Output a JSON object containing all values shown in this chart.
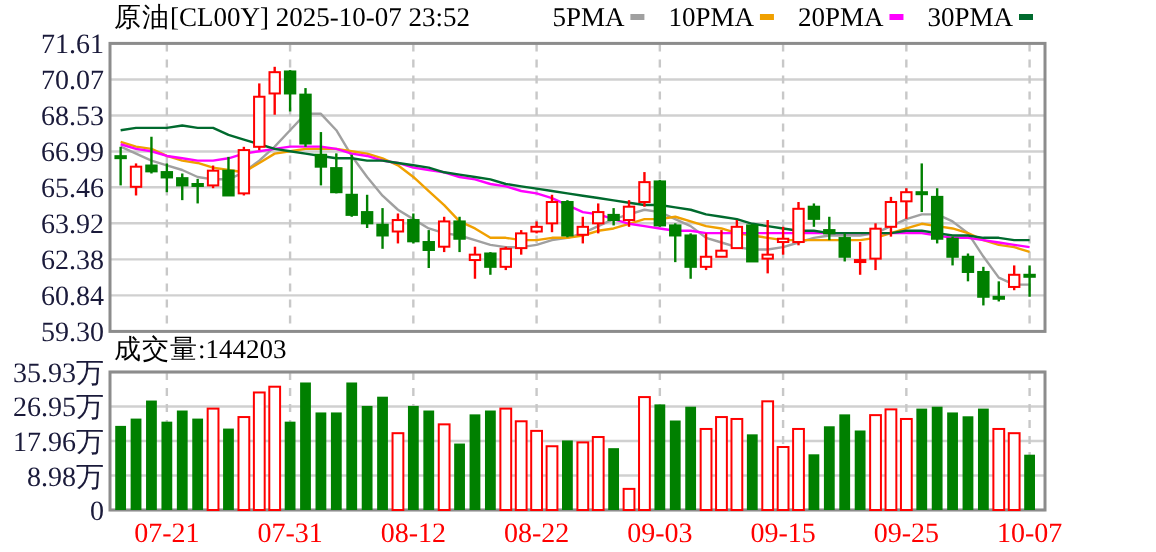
{
  "chart_data": [
    {
      "type": "candlestick",
      "title": "原油[CL00Y] 2025-10-07 23:52",
      "grid": true,
      "legend": "top right",
      "tick_labels": "y",
      "categories": [
        null,
        null,
        null,
        null,
        null,
        null,
        null,
        null,
        null,
        null,
        null,
        null,
        null,
        null,
        null,
        null,
        null,
        null,
        null,
        null,
        null,
        null,
        null,
        null,
        null,
        null,
        null,
        null,
        null,
        null,
        null,
        null,
        null,
        null,
        null,
        null,
        null,
        null,
        null,
        null,
        null,
        null,
        null,
        null,
        null,
        null,
        null,
        null,
        null,
        null,
        null,
        null,
        null,
        null,
        null,
        null,
        null,
        null,
        null,
        null
      ],
      "ylim": [
        59.3,
        71.61
      ],
      "yticks": [
        {
          "value": 59.3,
          "label": "59.30"
        },
        60.84,
        62.38,
        63.92,
        65.46,
        66.99,
        70.07,
        68.53,
        71.61
      ],
      "ohlc": [
        [
          66.79,
          67.19,
          65.54,
          66.76
        ],
        [
          65.48,
          66.48,
          65.11,
          66.34
        ],
        [
          66.39,
          67.62,
          66.05,
          66.14
        ],
        [
          66.11,
          66.48,
          65.25,
          65.88
        ],
        [
          65.85,
          66.05,
          64.91,
          65.54
        ],
        [
          65.6,
          65.82,
          64.77,
          65.54
        ],
        [
          65.54,
          66.39,
          65.42,
          66.17
        ],
        [
          66.17,
          66.76,
          65.11,
          65.11
        ],
        [
          65.2,
          67.19,
          65.11,
          67.05
        ],
        [
          67.19,
          69.9,
          67.05,
          69.33
        ],
        [
          69.47,
          70.61,
          68.56,
          70.38
        ],
        [
          70.41,
          70.47,
          68.7,
          69.47
        ],
        [
          69.42,
          69.7,
          67.19,
          67.33
        ],
        [
          66.85,
          67.82,
          65.54,
          66.34
        ],
        [
          66.28,
          66.91,
          65.2,
          65.25
        ],
        [
          65.14,
          66.85,
          64.2,
          64.28
        ],
        [
          64.4,
          65.14,
          63.72,
          63.92
        ],
        [
          63.86,
          64.57,
          62.83,
          63.4
        ],
        [
          63.57,
          64.34,
          63.06,
          64.06
        ],
        [
          64.06,
          64.34,
          63.06,
          63.15
        ],
        [
          63.12,
          63.63,
          62.01,
          62.78
        ],
        [
          62.92,
          64.2,
          62.69,
          64.0
        ],
        [
          64.0,
          64.2,
          62.69,
          63.26
        ],
        [
          62.35,
          62.92,
          61.55,
          62.58
        ],
        [
          62.63,
          62.69,
          61.72,
          62.06
        ],
        [
          62.06,
          62.92,
          61.92,
          62.83
        ],
        [
          62.86,
          63.63,
          62.58,
          63.49
        ],
        [
          63.57,
          64.0,
          63.49,
          63.77
        ],
        [
          63.92,
          65.14,
          63.54,
          64.83
        ],
        [
          64.83,
          64.91,
          63.32,
          63.4
        ],
        [
          63.43,
          64.2,
          63.06,
          63.77
        ],
        [
          63.92,
          64.77,
          63.49,
          64.4
        ],
        [
          64.28,
          64.57,
          63.83,
          64.06
        ],
        [
          64.06,
          64.91,
          63.77,
          64.63
        ],
        [
          64.83,
          66.11,
          64.63,
          65.68
        ],
        [
          65.71,
          65.77,
          63.77,
          63.83
        ],
        [
          63.83,
          63.92,
          62.26,
          63.4
        ],
        [
          63.4,
          63.49,
          61.55,
          62.06
        ],
        [
          62.06,
          63.49,
          61.92,
          62.49
        ],
        [
          62.49,
          63.63,
          62.49,
          62.75
        ],
        [
          62.86,
          64.06,
          62.86,
          63.77
        ],
        [
          63.83,
          63.88,
          62.29,
          62.29
        ],
        [
          62.41,
          64.06,
          61.78,
          62.58
        ],
        [
          63.12,
          63.77,
          62.58,
          63.26
        ],
        [
          63.12,
          64.83,
          62.98,
          64.54
        ],
        [
          64.63,
          64.77,
          63.77,
          64.11
        ],
        [
          63.63,
          64.2,
          63.2,
          63.49
        ],
        [
          63.29,
          63.49,
          62.29,
          62.49
        ],
        [
          62.29,
          63.12,
          61.72,
          62.35
        ],
        [
          62.41,
          63.92,
          61.92,
          63.69
        ],
        [
          63.77,
          65.05,
          63.35,
          64.83
        ],
        [
          64.86,
          65.42,
          64.11,
          65.25
        ],
        [
          65.25,
          66.48,
          64.4,
          65.2
        ],
        [
          65.05,
          65.42,
          63.06,
          63.26
        ],
        [
          63.26,
          63.35,
          62.12,
          62.49
        ],
        [
          62.49,
          62.63,
          61.44,
          61.84
        ],
        [
          61.84,
          62.06,
          60.41,
          60.78
        ],
        [
          60.78,
          61.44,
          60.58,
          60.7
        ],
        [
          61.2,
          62.12,
          61.06,
          61.72
        ],
        [
          61.72,
          62.12,
          60.78,
          61.67
        ]
      ],
      "colors": [
        "#008000",
        "#ff0000",
        "#008000",
        "#008000",
        "#008000",
        "#008000",
        "#ff0000",
        "#008000",
        "#ff0000",
        "#ff0000",
        "#ff0000",
        "#008000",
        "#008000",
        "#008000",
        "#008000",
        "#008000",
        "#008000",
        "#008000",
        "#ff0000",
        "#008000",
        "#008000",
        "#ff0000",
        "#008000",
        "#ff0000",
        "#008000",
        "#ff0000",
        "#ff0000",
        "#ff0000",
        "#ff0000",
        "#008000",
        "#ff0000",
        "#ff0000",
        "#008000",
        "#ff0000",
        "#ff0000",
        "#008000",
        "#008000",
        "#008000",
        "#ff0000",
        "#ff0000",
        "#ff0000",
        "#008000",
        "#ff0000",
        "#ff0000",
        "#ff0000",
        "#008000",
        "#008000",
        "#008000",
        "#ff0000",
        "#ff0000",
        "#ff0000",
        "#ff0000",
        "#008000",
        "#008000",
        "#008000",
        "#008000",
        "#008000",
        "#008000",
        "#ff0000",
        "#008000"
      ],
      "series": [
        {
          "name": "5PMA",
          "type": "line",
          "color": "#a0a0a0",
          "values": [
            67.2,
            66.9,
            66.6,
            66.4,
            66.2,
            65.9,
            65.8,
            65.8,
            66.1,
            66.6,
            67.2,
            67.9,
            68.6,
            68.6,
            67.9,
            66.8,
            65.9,
            65.1,
            64.5,
            64.1,
            63.7,
            63.5,
            63.4,
            63.2,
            63.0,
            62.9,
            62.9,
            63.0,
            63.2,
            63.3,
            63.5,
            63.8,
            64.1,
            64.3,
            64.5,
            64.4,
            64.1,
            63.8,
            63.3,
            63.1,
            62.9,
            62.8,
            62.8,
            62.9,
            63.1,
            63.3,
            63.4,
            63.4,
            63.4,
            63.5,
            63.8,
            64.1,
            64.3,
            64.3,
            64.0,
            63.5,
            62.5,
            61.6,
            61.3,
            61.3
          ]
        },
        {
          "name": "10PMA",
          "type": "line",
          "color": "#f0a000",
          "values": [
            67.4,
            67.2,
            67.1,
            66.8,
            66.6,
            66.5,
            66.3,
            66.2,
            66.1,
            66.5,
            66.9,
            67.0,
            67.1,
            67.1,
            67.1,
            67.0,
            66.9,
            66.7,
            66.4,
            65.9,
            65.3,
            64.7,
            64.0,
            63.7,
            63.3,
            63.3,
            63.2,
            63.2,
            63.3,
            63.3,
            63.4,
            63.6,
            63.7,
            63.9,
            64.1,
            64.1,
            64.2,
            64.0,
            63.8,
            63.7,
            63.5,
            63.4,
            63.3,
            63.2,
            63.2,
            63.2,
            63.2,
            63.2,
            63.2,
            63.3,
            63.5,
            63.7,
            63.9,
            63.8,
            63.7,
            63.5,
            63.2,
            63.0,
            62.9,
            62.7
          ]
        },
        {
          "name": "20PMA",
          "type": "line",
          "color": "#ff00ff",
          "values": [
            67.3,
            67.1,
            67.0,
            66.8,
            66.7,
            66.6,
            66.6,
            66.7,
            66.9,
            67.0,
            67.1,
            67.2,
            67.2,
            67.2,
            67.1,
            66.9,
            66.8,
            66.6,
            66.5,
            66.3,
            66.2,
            66.1,
            65.9,
            65.8,
            65.6,
            65.5,
            65.3,
            65.2,
            65.0,
            64.7,
            64.4,
            64.3,
            64.1,
            63.9,
            63.8,
            63.7,
            63.6,
            63.6,
            63.5,
            63.5,
            63.5,
            63.5,
            63.5,
            63.5,
            63.5,
            63.5,
            63.5,
            63.5,
            63.5,
            63.5,
            63.5,
            63.5,
            63.5,
            63.4,
            63.3,
            63.3,
            63.2,
            63.1,
            63.0,
            62.9
          ]
        },
        {
          "name": "30PMA",
          "type": "line",
          "color": "#006a2e",
          "values": [
            67.9,
            68.0,
            68.0,
            68.0,
            68.1,
            68.0,
            68.0,
            67.7,
            67.5,
            67.3,
            67.1,
            67.0,
            66.9,
            66.8,
            66.7,
            66.7,
            66.6,
            66.6,
            66.5,
            66.4,
            66.3,
            66.1,
            66.0,
            65.9,
            65.8,
            65.6,
            65.5,
            65.4,
            65.3,
            65.2,
            65.1,
            65.0,
            64.9,
            64.8,
            64.7,
            64.7,
            64.6,
            64.5,
            64.3,
            64.2,
            64.1,
            63.9,
            63.8,
            63.7,
            63.6,
            63.6,
            63.5,
            63.5,
            63.5,
            63.5,
            63.5,
            63.6,
            63.6,
            63.5,
            63.4,
            63.4,
            63.3,
            63.3,
            63.2,
            63.2
          ]
        }
      ]
    },
    {
      "type": "bar",
      "title": "成交量:144203",
      "grid": true,
      "categories": [
        null,
        null,
        null,
        "07-21",
        null,
        null,
        null,
        null,
        null,
        null,
        null,
        "07-31",
        null,
        null,
        null,
        null,
        null,
        null,
        null,
        "08-12",
        null,
        null,
        null,
        null,
        null,
        null,
        null,
        "08-22",
        null,
        null,
        null,
        null,
        null,
        null,
        null,
        "09-03",
        null,
        null,
        null,
        null,
        null,
        null,
        null,
        "09-15",
        null,
        null,
        null,
        null,
        null,
        null,
        null,
        "09-25",
        null,
        null,
        null,
        null,
        null,
        null,
        null,
        "10-07"
      ],
      "ylim": [
        0,
        35.93
      ],
      "yticks": [
        0,
        {
          "value": 8.98,
          "label": "8.98万"
        },
        {
          "value": 17.96,
          "label": "17.96万"
        },
        {
          "value": 26.95,
          "label": "26.95万"
        },
        {
          "value": 35.93,
          "label": "35.93万"
        }
      ],
      "values": [
        21.9,
        23.8,
        28.5,
        23.0,
        25.9,
        23.8,
        26.4,
        21.2,
        24.2,
        30.6,
        32.1,
        23.0,
        33.2,
        25.4,
        25.4,
        33.2,
        27.1,
        29.5,
        20.0,
        27.1,
        25.9,
        22.3,
        17.3,
        24.9,
        25.9,
        26.4,
        23.1,
        20.6,
        16.6,
        18.1,
        17.6,
        19.0,
        16.1,
        5.5,
        29.4,
        27.5,
        23.3,
        26.9,
        21.1,
        24.2,
        23.7,
        19.7,
        28.3,
        16.4,
        21.1,
        14.5,
        21.8,
        24.9,
        20.7,
        24.7,
        26.2,
        23.7,
        26.4,
        26.9,
        25.4,
        24.4,
        26.4,
        21.1,
        20.0,
        14.4
      ],
      "colors": [
        "#008000",
        "#008000",
        "#008000",
        "#008000",
        "#008000",
        "#008000",
        "#ff0000",
        "#008000",
        "#ff0000",
        "#ff0000",
        "#ff0000",
        "#008000",
        "#008000",
        "#008000",
        "#008000",
        "#008000",
        "#008000",
        "#008000",
        "#ff0000",
        "#008000",
        "#008000",
        "#ff0000",
        "#008000",
        "#008000",
        "#008000",
        "#ff0000",
        "#ff0000",
        "#ff0000",
        "#ff0000",
        "#008000",
        "#ff0000",
        "#ff0000",
        "#008000",
        "#ff0000",
        "#ff0000",
        "#008000",
        "#008000",
        "#008000",
        "#ff0000",
        "#ff0000",
        "#ff0000",
        "#008000",
        "#ff0000",
        "#ff0000",
        "#ff0000",
        "#008000",
        "#008000",
        "#008000",
        "#008000",
        "#ff0000",
        "#ff0000",
        "#ff0000",
        "#008000",
        "#008000",
        "#008000",
        "#008000",
        "#008000",
        "#ff0000",
        "#ff0000",
        "#008000"
      ]
    }
  ]
}
